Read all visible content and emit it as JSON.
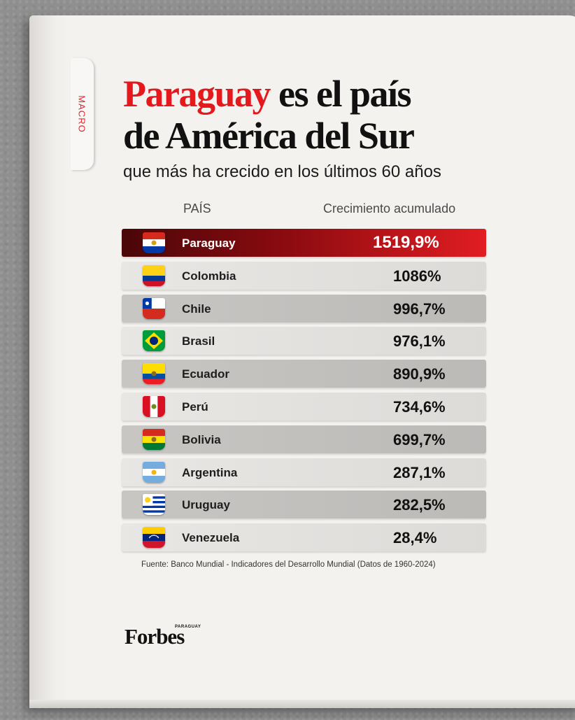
{
  "tab": {
    "label": "MACRO"
  },
  "title": {
    "highlight": "Paraguay",
    "line1_rest": " es el país",
    "line2": "de América del Sur"
  },
  "subtitle": "que más ha crecido en los últimos 60 años",
  "headers": {
    "country": "PAÍS",
    "growth": "Crecimiento acumulado"
  },
  "colors": {
    "accent": "#e3191e",
    "highlight_start": "#4a0608",
    "highlight_end": "#e11d22"
  },
  "chart_data": {
    "type": "table",
    "title": "Paraguay es el país de América del Sur que más ha crecido en los últimos 60 años",
    "columns": [
      "PAÍS",
      "Crecimiento acumulado"
    ],
    "rows": [
      {
        "country": "Paraguay",
        "value": 1519.9,
        "label": "1519,9%",
        "flag": "paraguay-flag-icon"
      },
      {
        "country": "Colombia",
        "value": 1086,
        "label": "1086%",
        "flag": "colombia-flag-icon"
      },
      {
        "country": "Chile",
        "value": 996.7,
        "label": "996,7%",
        "flag": "chile-flag-icon"
      },
      {
        "country": "Brasil",
        "value": 976.1,
        "label": "976,1%",
        "flag": "brazil-flag-icon"
      },
      {
        "country": "Ecuador",
        "value": 890.9,
        "label": "890,9%",
        "flag": "ecuador-flag-icon"
      },
      {
        "country": "Perú",
        "value": 734.6,
        "label": "734,6%",
        "flag": "peru-flag-icon"
      },
      {
        "country": "Bolivia",
        "value": 699.7,
        "label": "699,7%",
        "flag": "bolivia-flag-icon"
      },
      {
        "country": "Argentina",
        "value": 287.1,
        "label": "287,1%",
        "flag": "argentina-flag-icon"
      },
      {
        "country": "Uruguay",
        "value": 282.5,
        "label": "282,5%",
        "flag": "uruguay-flag-icon"
      },
      {
        "country": "Venezuela",
        "value": 28.4,
        "label": "28,4%",
        "flag": "venezuela-flag-icon"
      }
    ]
  },
  "source": "Fuente: Banco Mundial - Indicadores del Desarrollo Mundial (Datos de 1960-2024)",
  "brand": {
    "name": "Forbes",
    "edition": "PARAGUAY"
  }
}
